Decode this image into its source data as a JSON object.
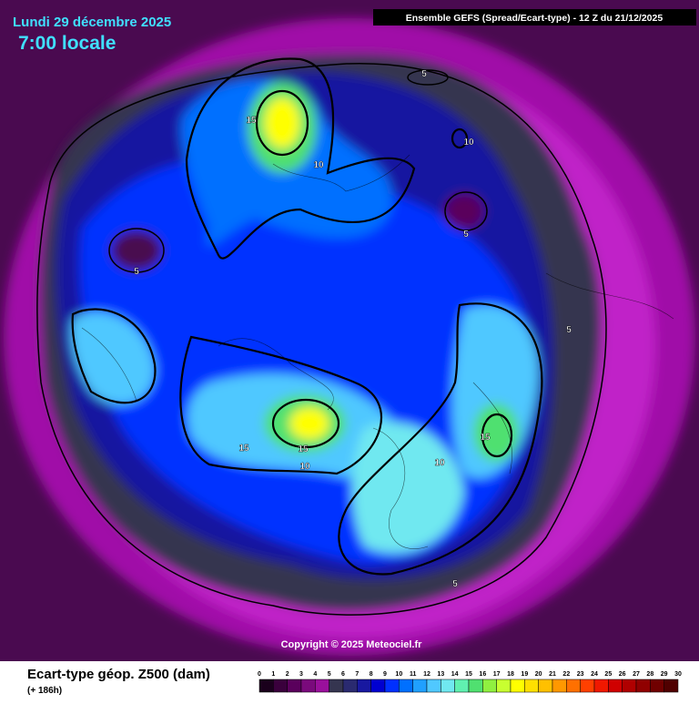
{
  "header": {
    "date": "Lundi 29 décembre 2025",
    "time": "7:00 locale",
    "run": "Ensemble GEFS  (Spread/Ecart-type) - 12 Z du 21/12/2025"
  },
  "copyright": "Copyright © 2025 Meteociel.fr",
  "contour_labels": [
    "5",
    "5",
    "5",
    "5",
    "5",
    "10",
    "10",
    "10",
    "10",
    "15",
    "15",
    "15",
    "15"
  ],
  "legend": {
    "title": "Ecart-type géop. Z500 (dam)",
    "lead": "(+ 186h)",
    "ticks": [
      0,
      1,
      2,
      3,
      4,
      5,
      6,
      7,
      8,
      9,
      10,
      11,
      12,
      13,
      14,
      15,
      16,
      17,
      18,
      19,
      20,
      21,
      22,
      23,
      24,
      25,
      26,
      27,
      28,
      29,
      30
    ],
    "colors": [
      "#1a001c",
      "#3a003c",
      "#5a005c",
      "#7a0a7c",
      "#9a109c",
      "#353550",
      "#2a2a70",
      "#1818a0",
      "#0000d0",
      "#0030ff",
      "#0070ff",
      "#20a0ff",
      "#50c8ff",
      "#70e8f0",
      "#60f0b0",
      "#50e070",
      "#90f040",
      "#c8ff30",
      "#ffff00",
      "#ffe000",
      "#ffc000",
      "#ff9800",
      "#ff7000",
      "#ff4000",
      "#f01800",
      "#d00000",
      "#b00000",
      "#900000",
      "#700000",
      "#500000"
    ]
  }
}
